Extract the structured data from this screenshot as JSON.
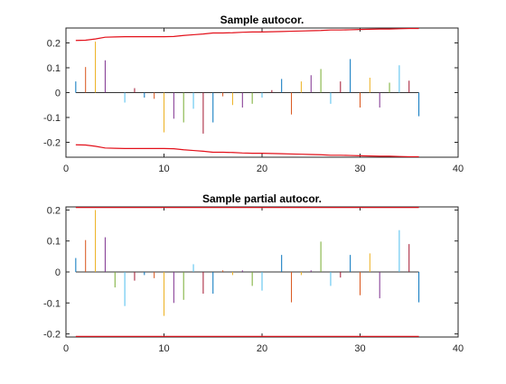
{
  "colors": {
    "stems": [
      "#0072BD",
      "#D95319",
      "#EDB120",
      "#7E2F8E",
      "#77AC30",
      "#4DBEEE",
      "#A2142F"
    ],
    "bounds": "#E3101A",
    "axis": "#262626",
    "background": "#FFFFFF"
  },
  "chart_data": [
    {
      "type": "stem",
      "title": "Sample autocor.",
      "xlabel": "",
      "ylabel": "",
      "xlim": [
        0,
        40
      ],
      "ylim": [
        -0.26,
        0.26
      ],
      "grid": false,
      "xticks": [
        "0",
        "10",
        "20",
        "30",
        "40"
      ],
      "yticks": [
        "-0.2",
        "-0.1",
        "0",
        "0.1",
        "0.2"
      ],
      "x": [
        1,
        2,
        3,
        4,
        5,
        6,
        7,
        8,
        9,
        10,
        11,
        12,
        13,
        14,
        15,
        16,
        17,
        18,
        19,
        20,
        21,
        22,
        23,
        24,
        25,
        26,
        27,
        28,
        29,
        30,
        31,
        32,
        33,
        34,
        35,
        36
      ],
      "values": [
        0.045,
        0.103,
        0.205,
        0.13,
        0.0,
        -0.04,
        0.018,
        -0.02,
        -0.025,
        -0.16,
        -0.105,
        -0.12,
        -0.065,
        -0.165,
        -0.12,
        -0.015,
        -0.05,
        -0.06,
        -0.045,
        -0.02,
        0.01,
        0.055,
        -0.088,
        0.045,
        0.07,
        0.095,
        -0.045,
        0.045,
        0.135,
        -0.06,
        0.06,
        -0.06,
        0.04,
        0.11,
        0.048,
        -0.095
      ],
      "upper_bound": [
        0.21,
        0.211,
        0.216,
        0.223,
        0.224,
        0.225,
        0.225,
        0.225,
        0.225,
        0.225,
        0.226,
        0.23,
        0.233,
        0.236,
        0.24,
        0.24,
        0.241,
        0.243,
        0.244,
        0.244,
        0.245,
        0.246,
        0.247,
        0.248,
        0.249,
        0.25,
        0.252,
        0.252,
        0.253,
        0.254,
        0.255,
        0.256,
        0.256,
        0.257,
        0.258,
        0.258
      ],
      "lower_bound": [
        -0.21,
        -0.211,
        -0.216,
        -0.223,
        -0.224,
        -0.225,
        -0.225,
        -0.225,
        -0.225,
        -0.225,
        -0.226,
        -0.23,
        -0.233,
        -0.236,
        -0.24,
        -0.24,
        -0.241,
        -0.243,
        -0.244,
        -0.244,
        -0.245,
        -0.246,
        -0.247,
        -0.248,
        -0.249,
        -0.25,
        -0.252,
        -0.252,
        -0.253,
        -0.254,
        -0.255,
        -0.256,
        -0.256,
        -0.257,
        -0.258,
        -0.258
      ]
    },
    {
      "type": "stem",
      "title": "Sample partial autocor.",
      "xlabel": "",
      "ylabel": "",
      "xlim": [
        0,
        40
      ],
      "ylim": [
        -0.21,
        0.21
      ],
      "grid": false,
      "xticks": [
        "0",
        "10",
        "20",
        "30",
        "40"
      ],
      "yticks": [
        "-0.2",
        "-0.1",
        "0",
        "0.1",
        "0.2"
      ],
      "x": [
        1,
        2,
        3,
        4,
        5,
        6,
        7,
        8,
        9,
        10,
        11,
        12,
        13,
        14,
        15,
        16,
        17,
        18,
        19,
        20,
        21,
        22,
        23,
        24,
        25,
        26,
        27,
        28,
        29,
        30,
        31,
        32,
        33,
        34,
        35,
        36
      ],
      "values": [
        0.045,
        0.103,
        0.2,
        0.112,
        -0.05,
        -0.11,
        -0.028,
        -0.01,
        -0.02,
        -0.142,
        -0.1,
        -0.09,
        0.025,
        -0.07,
        -0.07,
        0.005,
        -0.01,
        0.005,
        -0.045,
        -0.06,
        0.0,
        0.055,
        -0.098,
        -0.01,
        0.005,
        0.098,
        -0.045,
        -0.018,
        0.055,
        -0.075,
        0.06,
        -0.085,
        0.0,
        0.135,
        0.09,
        -0.098
      ],
      "upper_bound": [
        0.208,
        0.208,
        0.208,
        0.208,
        0.208,
        0.208,
        0.208,
        0.208,
        0.208,
        0.208,
        0.208,
        0.208,
        0.208,
        0.208,
        0.208,
        0.208,
        0.208,
        0.208,
        0.208,
        0.208,
        0.208,
        0.208,
        0.208,
        0.208,
        0.208,
        0.208,
        0.208,
        0.208,
        0.208,
        0.208,
        0.208,
        0.208,
        0.208,
        0.208,
        0.208,
        0.208
      ],
      "lower_bound": [
        -0.208,
        -0.208,
        -0.208,
        -0.208,
        -0.208,
        -0.208,
        -0.208,
        -0.208,
        -0.208,
        -0.208,
        -0.208,
        -0.208,
        -0.208,
        -0.208,
        -0.208,
        -0.208,
        -0.208,
        -0.208,
        -0.208,
        -0.208,
        -0.208,
        -0.208,
        -0.208,
        -0.208,
        -0.208,
        -0.208,
        -0.208,
        -0.208,
        -0.208,
        -0.208,
        -0.208,
        -0.208,
        -0.208,
        -0.208,
        -0.208,
        -0.208
      ]
    }
  ]
}
